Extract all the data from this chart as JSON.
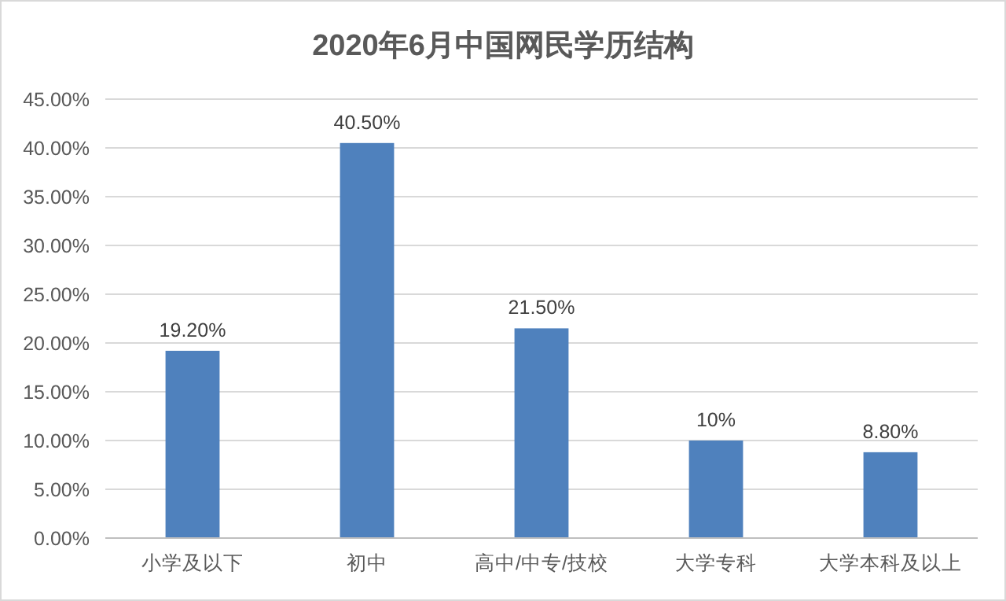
{
  "chart_data": {
    "type": "bar",
    "title": "2020年6月中国网民学历结构",
    "categories": [
      "小学及以下",
      "初中",
      "高中/中专/技校",
      "大学专科",
      "大学本科及以上"
    ],
    "values": [
      19.2,
      40.5,
      21.5,
      10,
      8.8
    ],
    "color": "#4f81bd",
    "value_labels": [
      "19.20%",
      "40.50%",
      "21.50%",
      "10%",
      "8.80%"
    ],
    "ylim": [
      0,
      45
    ],
    "yticks": [
      {
        "value": 0,
        "label": "0.00%"
      },
      {
        "value": 5,
        "label": "5.00%"
      },
      {
        "value": 10,
        "label": "10.00%"
      },
      {
        "value": 15,
        "label": "15.00%"
      },
      {
        "value": 20,
        "label": "20.00%"
      },
      {
        "value": 25,
        "label": "25.00%"
      },
      {
        "value": 30,
        "label": "30.00%"
      },
      {
        "value": 35,
        "label": "35.00%"
      },
      {
        "value": 40,
        "label": "40.00%"
      },
      {
        "value": 45,
        "label": "45.00%"
      }
    ],
    "grid": "y"
  }
}
